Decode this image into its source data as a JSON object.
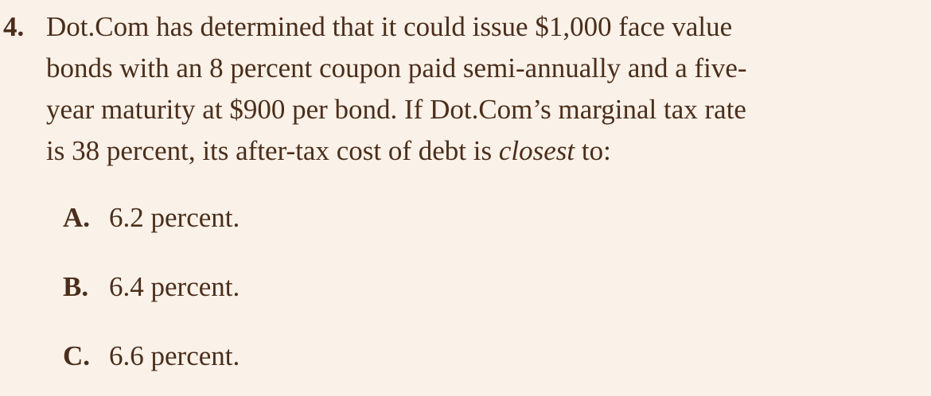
{
  "question": {
    "number": "4.",
    "lines": [
      "Dot.Com has determined that it could issue $1,000 face value",
      "bonds with an 8 percent coupon paid semi-annually and a five-",
      "year maturity at $900 per bond. If Dot.Com’s marginal tax rate"
    ],
    "last_line_prefix": "is 38 percent, its after-tax cost of debt is ",
    "last_line_emphasis": "closest",
    "last_line_suffix": " to:"
  },
  "options": [
    {
      "letter": "A.",
      "text": "6.2 percent."
    },
    {
      "letter": "B.",
      "text": "6.4 percent."
    },
    {
      "letter": "C.",
      "text": "6.6 percent."
    }
  ]
}
